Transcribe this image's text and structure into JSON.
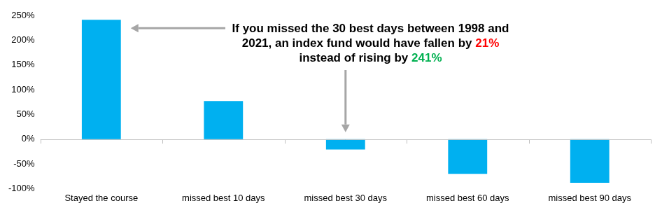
{
  "chart_data": {
    "type": "bar",
    "categories": [
      "Stayed the course",
      "missed best 10 days",
      "missed best 30 days",
      "missed best 60 days",
      "missed best 90 days"
    ],
    "values": [
      241,
      77,
      -21,
      -70,
      -88
    ],
    "color": "#00b0f0",
    "ylim": [
      -100,
      250
    ],
    "yticks": [
      {
        "value": -100,
        "label": "-100%"
      },
      {
        "value": -50,
        "label": "-50%"
      },
      {
        "value": 0,
        "label": "0%"
      },
      {
        "value": 50,
        "label": "50%"
      },
      {
        "value": 100,
        "label": "100%"
      },
      {
        "value": 150,
        "label": "150%"
      },
      {
        "value": 200,
        "label": "200%"
      },
      {
        "value": 250,
        "label": "250%"
      }
    ],
    "grid": false,
    "annotation": [
      {
        "text": "If you missed the 30 best days between 1998 and 2021, an index fund would have fallen by "
      },
      {
        "text": "21%",
        "color": "#ff0000"
      },
      {
        "text": " instead of rising by "
      },
      {
        "text": "241%",
        "color": "#00b050"
      }
    ]
  }
}
